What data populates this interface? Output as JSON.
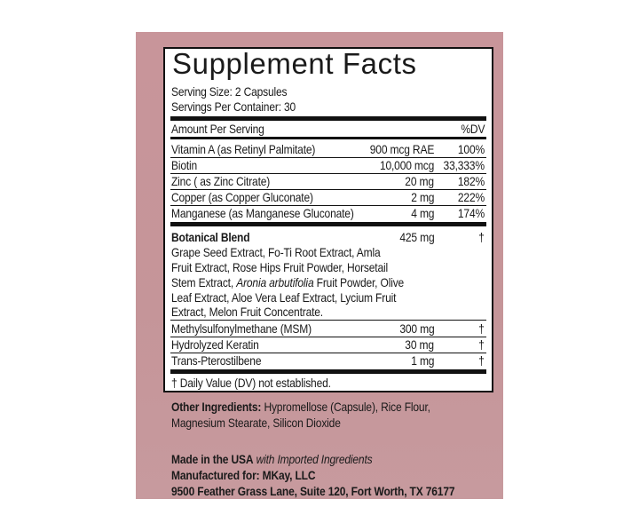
{
  "title": "Supplement Facts",
  "serving_size": "Serving Size: 2 Capsules",
  "servings_per_container": "Servings Per Container: 30",
  "header": {
    "amount": "Amount Per Serving",
    "dv": "%DV"
  },
  "nutrients": [
    {
      "name": "Vitamin A (as Retinyl Palmitate)",
      "amount": "900 mcg RAE",
      "dv": "100%"
    },
    {
      "name": "Biotin",
      "amount": "10,000 mcg",
      "dv": "33,333%"
    },
    {
      "name": "Zinc ( as Zinc Citrate)",
      "amount": "20 mg",
      "dv": "182%"
    },
    {
      "name": "Copper (as Copper Gluconate)",
      "amount": "2 mg",
      "dv": "222%"
    },
    {
      "name": "Manganese (as Manganese Gluconate)",
      "amount": "4 mg",
      "dv": "174%"
    }
  ],
  "blend": {
    "name": "Botanical Blend",
    "amount": "425 mg",
    "dv": "†",
    "lines": [
      "Grape Seed Extract, Fo-Ti Root Extract, Amla",
      "Fruit Extract, Rose Hips Fruit Powder, Horsetail",
      "Stem Extract, ",
      "Aronia arbutifolia",
      " Fruit Powder, Olive",
      "Leaf Extract, Aloe Vera Leaf Extract, Lycium Fruit",
      "Extract, Melon Fruit Concentrate."
    ]
  },
  "others": [
    {
      "name": "Methylsulfonylmethane (MSM)",
      "amount": "300 mg",
      "dv": "†"
    },
    {
      "name": "Hydrolyzed Keratin",
      "amount": "30 mg",
      "dv": "†"
    },
    {
      "name": "Trans-Pterostilbene",
      "amount": "1 mg",
      "dv": "†"
    }
  ],
  "footnote": "† Daily Value (DV) not established.",
  "other_ingredients": {
    "label": "Other Ingredients:",
    "line1": " Hypromellose (Capsule), Rice Flour,",
    "line2": "Magnesium Stearate, Silicon Dioxide"
  },
  "made_in": {
    "bold": "Made in the USA",
    "italic": " with Imported Ingredients"
  },
  "manufacturer": "Manufactured for: MKay, LLC",
  "address": "9500 Feather Grass Lane, Suite 120, Fort Worth, TX 76177",
  "colors": {
    "panel": "#c8959a",
    "box": "#ffffff",
    "rule": "#111111"
  }
}
